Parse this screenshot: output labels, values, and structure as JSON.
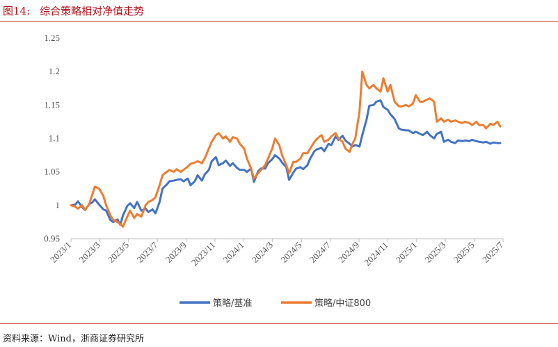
{
  "header": {
    "figure_no": "图14:",
    "title": "综合策略相对净值走势"
  },
  "source_note": "资料来源：Wind，浙商证券研究所",
  "colors": {
    "title": "#b3121a",
    "rule": "#c0392b",
    "series1": "#4472c4",
    "series2": "#ed7d31"
  },
  "chart_data": {
    "type": "line",
    "title": "综合策略相对净值走势",
    "xlabel": "",
    "ylabel": "",
    "ylim": [
      0.95,
      1.25
    ],
    "yticks": [
      "0.95",
      "1",
      "1.05",
      "1.1",
      "1.15",
      "1.2",
      "1.25"
    ],
    "x_tick_labels": [
      "2023/1",
      "2023/3",
      "2023/5",
      "2023/7",
      "2023/9",
      "2023/11",
      "2024/1",
      "2024/3",
      "2024/5",
      "2024/7",
      "2024/9",
      "2024/11",
      "2025/1",
      "2025/3",
      "2025/5",
      "2025/7"
    ],
    "x_range": [
      0,
      30.7
    ],
    "grid": false,
    "legend_position": "bottom-center",
    "series": [
      {
        "name": "策略/基准",
        "color": "#4472c4",
        "x": [
          0,
          0.3,
          0.5,
          0.8,
          1.0,
          1.3,
          1.5,
          1.7,
          2.0,
          2.3,
          2.5,
          2.8,
          3.0,
          3.3,
          3.5,
          3.7,
          4.0,
          4.2,
          4.5,
          4.7,
          5.0,
          5.3,
          5.5,
          5.8,
          6.0,
          6.3,
          6.5,
          6.8,
          7.0,
          7.3,
          7.5,
          7.8,
          8.0,
          8.3,
          8.5,
          8.8,
          9.0,
          9.3,
          9.5,
          9.8,
          10.0,
          10.3,
          10.5,
          10.8,
          11.0,
          11.3,
          11.5,
          11.8,
          12.0,
          12.3,
          12.5,
          12.8,
          13.0,
          13.3,
          13.5,
          13.8,
          14.0,
          14.3,
          14.5,
          14.8,
          15.0,
          15.3,
          15.5,
          15.8,
          16.0,
          16.3,
          16.5,
          16.8,
          17.0,
          17.3,
          17.5,
          17.8,
          18.0,
          18.3,
          18.5,
          18.8,
          19.0,
          19.3,
          19.5,
          19.8,
          20.0,
          20.2,
          20.5,
          20.7,
          21.0,
          21.2,
          21.5,
          21.7,
          22.0,
          22.2,
          22.5,
          22.7,
          23.0,
          23.3,
          23.5,
          23.8,
          24.0,
          24.3,
          24.5,
          24.8,
          25.0,
          25.3,
          25.5,
          25.8,
          26.0,
          26.3,
          26.5,
          26.8,
          27.0,
          27.3,
          27.5,
          27.8,
          28.0,
          28.3,
          28.5,
          28.8,
          29.0,
          29.3,
          29.5,
          29.8,
          30.0,
          30.3,
          30.5
        ],
        "values": [
          1.0,
          1.001,
          1.006,
          0.997,
          0.993,
          1.002,
          1.004,
          1.009,
          1.001,
          0.994,
          0.992,
          0.978,
          0.975,
          0.979,
          0.971,
          0.985,
          0.999,
          1.003,
          0.996,
          1.005,
          0.992,
          0.995,
          0.99,
          0.994,
          0.988,
          1.005,
          1.025,
          1.031,
          1.036,
          1.037,
          1.038,
          1.039,
          1.036,
          1.04,
          1.03,
          1.036,
          1.045,
          1.037,
          1.046,
          1.053,
          1.066,
          1.072,
          1.06,
          1.063,
          1.067,
          1.059,
          1.063,
          1.056,
          1.053,
          1.053,
          1.05,
          1.055,
          1.035,
          1.051,
          1.055,
          1.055,
          1.063,
          1.069,
          1.075,
          1.07,
          1.064,
          1.057,
          1.038,
          1.049,
          1.055,
          1.057,
          1.054,
          1.06,
          1.07,
          1.081,
          1.084,
          1.086,
          1.081,
          1.092,
          1.09,
          1.103,
          1.098,
          1.104,
          1.097,
          1.092,
          1.088,
          1.09,
          1.088,
          1.105,
          1.128,
          1.149,
          1.15,
          1.155,
          1.157,
          1.147,
          1.143,
          1.136,
          1.129,
          1.115,
          1.113,
          1.112,
          1.112,
          1.108,
          1.11,
          1.107,
          1.105,
          1.11,
          1.105,
          1.1,
          1.107,
          1.11,
          1.095,
          1.098,
          1.095,
          1.093,
          1.097,
          1.096,
          1.097,
          1.096,
          1.098,
          1.096,
          1.095,
          1.094,
          1.095,
          1.092,
          1.094,
          1.093,
          1.093
        ]
      },
      {
        "name": "策略/中证800",
        "color": "#ed7d31",
        "x": [
          0,
          0.3,
          0.5,
          0.8,
          1.0,
          1.3,
          1.5,
          1.7,
          2.0,
          2.3,
          2.5,
          2.8,
          3.0,
          3.3,
          3.5,
          3.7,
          4.0,
          4.2,
          4.5,
          4.7,
          5.0,
          5.3,
          5.5,
          5.8,
          6.0,
          6.3,
          6.5,
          6.8,
          7.0,
          7.3,
          7.5,
          7.8,
          8.0,
          8.3,
          8.5,
          8.8,
          9.0,
          9.3,
          9.5,
          9.8,
          10.0,
          10.3,
          10.5,
          10.8,
          11.0,
          11.3,
          11.5,
          11.8,
          12.0,
          12.3,
          12.5,
          12.8,
          13.0,
          13.3,
          13.5,
          13.8,
          14.0,
          14.3,
          14.5,
          14.8,
          15.0,
          15.3,
          15.5,
          15.8,
          16.0,
          16.3,
          16.5,
          16.8,
          17.0,
          17.3,
          17.5,
          17.8,
          18.0,
          18.3,
          18.5,
          18.8,
          19.0,
          19.3,
          19.5,
          19.8,
          20.0,
          20.2,
          20.5,
          20.7,
          21.0,
          21.2,
          21.5,
          21.7,
          22.0,
          22.2,
          22.5,
          22.7,
          23.0,
          23.3,
          23.5,
          23.8,
          24.0,
          24.3,
          24.5,
          24.8,
          25.0,
          25.3,
          25.5,
          25.8,
          26.0,
          26.3,
          26.5,
          26.8,
          27.0,
          27.3,
          27.5,
          27.8,
          28.0,
          28.3,
          28.5,
          28.8,
          29.0,
          29.3,
          29.5,
          29.8,
          30.0,
          30.3,
          30.5
        ],
        "values": [
          1.0,
          0.998,
          0.995,
          1.0,
          0.993,
          1.002,
          1.015,
          1.028,
          1.025,
          1.014,
          1.0,
          0.985,
          0.978,
          0.975,
          0.972,
          0.968,
          0.983,
          0.992,
          0.981,
          0.987,
          0.983,
          1.0,
          1.005,
          1.008,
          1.012,
          1.03,
          1.045,
          1.05,
          1.053,
          1.05,
          1.054,
          1.05,
          1.053,
          1.058,
          1.062,
          1.064,
          1.066,
          1.063,
          1.07,
          1.085,
          1.095,
          1.105,
          1.108,
          1.1,
          1.103,
          1.095,
          1.102,
          1.1,
          1.092,
          1.085,
          1.07,
          1.055,
          1.04,
          1.048,
          1.053,
          1.06,
          1.07,
          1.085,
          1.1,
          1.09,
          1.075,
          1.06,
          1.048,
          1.065,
          1.065,
          1.07,
          1.078,
          1.078,
          1.085,
          1.095,
          1.1,
          1.105,
          1.095,
          1.098,
          1.103,
          1.108,
          1.1,
          1.095,
          1.085,
          1.08,
          1.092,
          1.1,
          1.14,
          1.2,
          1.18,
          1.175,
          1.18,
          1.175,
          1.17,
          1.19,
          1.17,
          1.18,
          1.155,
          1.148,
          1.148,
          1.15,
          1.148,
          1.152,
          1.165,
          1.155,
          1.155,
          1.158,
          1.16,
          1.155,
          1.125,
          1.13,
          1.125,
          1.128,
          1.125,
          1.127,
          1.125,
          1.123,
          1.125,
          1.123,
          1.12,
          1.125,
          1.12,
          1.12,
          1.115,
          1.122,
          1.12,
          1.125,
          1.118
        ]
      }
    ]
  }
}
